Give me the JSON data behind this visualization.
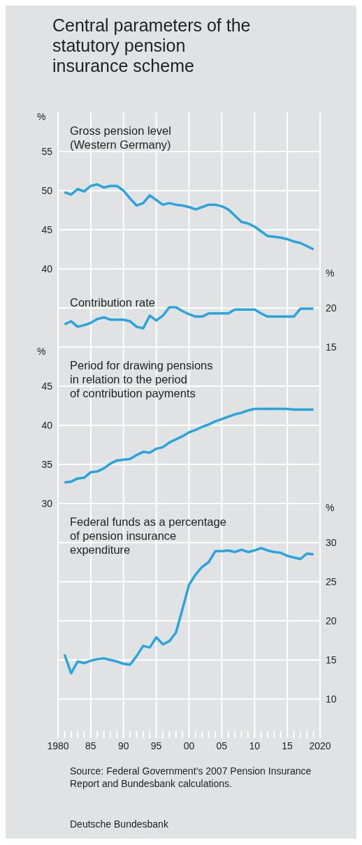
{
  "chart_data": [
    {
      "type": "line",
      "title": "Central parameters of the\nstatutory pension\ninsurance scheme",
      "ylabel": "%",
      "x": [
        1981,
        1982,
        1983,
        1984,
        1985,
        1986,
        1987,
        1988,
        1989,
        1990,
        1991,
        1992,
        1993,
        1994,
        1995,
        1996,
        1997,
        1998,
        1999,
        2000,
        2001,
        2002,
        2003,
        2004,
        2005,
        2006,
        2007,
        2008,
        2009,
        2010,
        2011,
        2012,
        2013,
        2014,
        2015,
        2016,
        2017,
        2018,
        2019
      ],
      "xlim": [
        1980,
        2020
      ],
      "xticks": [
        1980,
        1985,
        1990,
        1995,
        2000,
        2005,
        2010,
        2015,
        2020
      ],
      "ylim": [
        40,
        60
      ],
      "yticks": [
        40,
        45,
        50,
        55
      ],
      "grid": true,
      "tick_labels": "y",
      "series": [
        {
          "name": "Gross pension level\n(Western Germany)",
          "color": "#2aa4dc",
          "values": [
            49.8,
            49.5,
            50.2,
            49.9,
            50.6,
            50.8,
            50.4,
            50.6,
            50.6,
            50.0,
            49.0,
            48.1,
            48.4,
            49.4,
            48.8,
            48.2,
            48.4,
            48.2,
            48.1,
            47.9,
            47.6,
            47.9,
            48.2,
            48.2,
            48.0,
            47.6,
            46.8,
            46.0,
            45.8,
            45.4,
            44.8,
            44.2,
            44.1,
            44.0,
            43.8,
            43.5,
            43.3,
            42.9,
            42.5
          ]
        }
      ]
    },
    {
      "type": "line",
      "y2label": "%",
      "x": [
        1981,
        1982,
        1983,
        1984,
        1985,
        1986,
        1987,
        1988,
        1989,
        1990,
        1991,
        1992,
        1993,
        1994,
        1995,
        1996,
        1997,
        1998,
        1999,
        2000,
        2001,
        2002,
        2003,
        2004,
        2005,
        2006,
        2007,
        2008,
        2009,
        2010,
        2011,
        2012,
        2013,
        2014,
        2015,
        2016,
        2017,
        2018,
        2019
      ],
      "xlim": [
        1980,
        2020
      ],
      "xticks": [
        1980,
        1985,
        1990,
        1995,
        2000,
        2005,
        2010,
        2015,
        2020
      ],
      "y2lim": [
        15,
        25
      ],
      "y2ticks": [
        15,
        20
      ],
      "grid": true,
      "tick_labels": "y",
      "series": [
        {
          "name": "Contribution rate",
          "color": "#2aa4dc",
          "axis": "y2",
          "values": [
            17.9,
            18.3,
            17.6,
            17.8,
            18.1,
            18.6,
            18.8,
            18.5,
            18.5,
            18.5,
            18.3,
            17.6,
            17.4,
            19.0,
            18.4,
            19.0,
            20.1,
            20.1,
            19.6,
            19.2,
            18.9,
            18.9,
            19.3,
            19.3,
            19.3,
            19.3,
            19.8,
            19.8,
            19.8,
            19.8,
            19.3,
            18.9,
            18.9,
            18.9,
            18.9,
            18.9,
            19.9,
            19.9,
            19.9
          ]
        }
      ]
    },
    {
      "type": "line",
      "ylabel": "%",
      "x": [
        1981,
        1982,
        1983,
        1984,
        1985,
        1986,
        1987,
        1988,
        1989,
        1990,
        1991,
        1992,
        1993,
        1994,
        1995,
        1996,
        1997,
        1998,
        1999,
        2000,
        2001,
        2002,
        2003,
        2004,
        2005,
        2006,
        2007,
        2008,
        2009,
        2010,
        2011,
        2012,
        2013,
        2014,
        2015,
        2016,
        2017,
        2018,
        2019
      ],
      "xlim": [
        1980,
        2020
      ],
      "xticks": [
        1980,
        1985,
        1990,
        1995,
        2000,
        2005,
        2010,
        2015,
        2020
      ],
      "ylim": [
        30,
        50
      ],
      "yticks": [
        30,
        35,
        40,
        45
      ],
      "grid": true,
      "tick_labels": "y",
      "series": [
        {
          "name": "Period for drawing pensions\nin relation to the period\nof contribution payments",
          "color": "#2aa4dc",
          "values": [
            32.7,
            32.8,
            33.2,
            33.3,
            34.0,
            34.1,
            34.5,
            35.1,
            35.5,
            35.6,
            35.7,
            36.2,
            36.6,
            36.5,
            37.0,
            37.2,
            37.8,
            38.2,
            38.6,
            39.1,
            39.4,
            39.8,
            40.1,
            40.5,
            40.8,
            41.1,
            41.4,
            41.6,
            41.9,
            42.1,
            42.1,
            42.1,
            42.1,
            42.1,
            42.1,
            42.0,
            42.0,
            42.0,
            42.0
          ]
        }
      ]
    },
    {
      "type": "line",
      "y2label": "%",
      "x": [
        1981,
        1982,
        1983,
        1984,
        1985,
        1986,
        1987,
        1988,
        1989,
        1990,
        1991,
        1992,
        1993,
        1994,
        1995,
        1996,
        1997,
        1998,
        1999,
        2000,
        2001,
        2002,
        2003,
        2004,
        2005,
        2006,
        2007,
        2008,
        2009,
        2010,
        2011,
        2012,
        2013,
        2014,
        2015,
        2016,
        2017,
        2018,
        2019
      ],
      "xlim": [
        1980,
        2020
      ],
      "xticks": [
        {
          "value": 1980,
          "label": "1980"
        },
        {
          "value": 1981,
          "label": null
        },
        {
          "value": 1982,
          "label": null
        },
        {
          "value": 1983,
          "label": null
        },
        {
          "value": 1984,
          "label": null
        },
        {
          "value": 1985,
          "label": "85"
        },
        {
          "value": 1986,
          "label": null
        },
        {
          "value": 1987,
          "label": null
        },
        {
          "value": 1988,
          "label": null
        },
        {
          "value": 1989,
          "label": null
        },
        {
          "value": 1990,
          "label": "90"
        },
        {
          "value": 1991,
          "label": null
        },
        {
          "value": 1992,
          "label": null
        },
        {
          "value": 1993,
          "label": null
        },
        {
          "value": 1994,
          "label": null
        },
        {
          "value": 1995,
          "label": "95"
        },
        {
          "value": 1996,
          "label": null
        },
        {
          "value": 1997,
          "label": null
        },
        {
          "value": 1998,
          "label": null
        },
        {
          "value": 1999,
          "label": null
        },
        {
          "value": 2000,
          "label": "00"
        },
        {
          "value": 2001,
          "label": null
        },
        {
          "value": 2002,
          "label": null
        },
        {
          "value": 2003,
          "label": null
        },
        {
          "value": 2004,
          "label": null
        },
        {
          "value": 2005,
          "label": "05"
        },
        {
          "value": 2006,
          "label": null
        },
        {
          "value": 2007,
          "label": null
        },
        {
          "value": 2008,
          "label": null
        },
        {
          "value": 2009,
          "label": null
        },
        {
          "value": 2010,
          "label": "10"
        },
        {
          "value": 2011,
          "label": null
        },
        {
          "value": 2012,
          "label": null
        },
        {
          "value": 2013,
          "label": null
        },
        {
          "value": 2014,
          "label": null
        },
        {
          "value": 2015,
          "label": "15"
        },
        {
          "value": 2016,
          "label": null
        },
        {
          "value": 2017,
          "label": null
        },
        {
          "value": 2018,
          "label": null
        },
        {
          "value": 2019,
          "label": null
        },
        {
          "value": 2020,
          "label": "2020"
        }
      ],
      "y2lim": [
        5,
        35
      ],
      "y2ticks": [
        10,
        15,
        20,
        25,
        30
      ],
      "grid": true,
      "annotations": [
        "Source: Federal Government’s 2007 Pension Insurance Report and Bundesbank calculations.",
        "Deutsche Bundesbank"
      ],
      "series": [
        {
          "name": "Federal funds as a percentage\nof pension insurance\nexpenditure",
          "color": "#2aa4dc",
          "axis": "y2",
          "values": [
            15.7,
            13.3,
            14.8,
            14.6,
            14.9,
            15.1,
            15.2,
            15.0,
            14.8,
            14.5,
            14.4,
            15.5,
            16.8,
            16.6,
            17.9,
            17.0,
            17.4,
            18.5,
            21.5,
            24.6,
            25.9,
            26.9,
            27.5,
            28.9,
            28.9,
            29.0,
            28.8,
            29.1,
            28.8,
            29.0,
            29.3,
            29.0,
            28.8,
            28.7,
            28.3,
            28.1,
            27.9,
            28.6,
            28.5
          ]
        }
      ]
    }
  ]
}
